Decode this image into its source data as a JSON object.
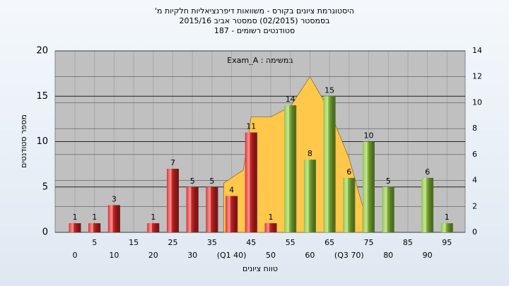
{
  "chart_data": {
    "type": "bar",
    "title": [
      "היסטוגרמת ציונים בקורס - משוואות דיפרנציאליות חלקיות מ'",
      "בסמסטר  (02/2015)  סמסטר אביב 2015/16",
      "סטודנטים רשומים - 187"
    ],
    "annotation": "במשימה : Exam_A",
    "y_label": "מספר סטודנטים",
    "x_label": "טווח ציונים",
    "categories": [
      "0",
      "5",
      "10",
      "15",
      "20",
      "25",
      "30",
      "35",
      "(Q1 40)",
      "45",
      "50",
      "55",
      "60",
      "65",
      "(Q3 70)",
      "75",
      "80",
      "85",
      "90",
      "95"
    ],
    "values": [
      1,
      1,
      3,
      null,
      1,
      7,
      5,
      5,
      4,
      11,
      1,
      14,
      8,
      15,
      6,
      10,
      5,
      null,
      6,
      1
    ],
    "colors": [
      "#e02828",
      "#e02828",
      "#e02828",
      "#e02828",
      "#e02828",
      "#e02828",
      "#e02828",
      "#e02828",
      "#e02828",
      "#e02828",
      "#e02828",
      "#8cc43c",
      "#8cc43c",
      "#8cc43c",
      "#8cc43c",
      "#8cc43c",
      "#8cc43c",
      "#8cc43c",
      "#8cc43c",
      "#8cc43c"
    ],
    "ylim": [
      0,
      20
    ],
    "yticks": [
      0,
      5,
      10,
      15,
      20
    ],
    "y2lim": [
      0,
      14
    ],
    "y2ticks": [
      0,
      2,
      4,
      6,
      8,
      10,
      12,
      14
    ],
    "distribution": {
      "axis": "y2",
      "color": "#ffc84a",
      "x": [
        38,
        43,
        45,
        50,
        55,
        60,
        65,
        70,
        73.5
      ],
      "values": [
        3.8,
        4.8,
        8.9,
        8.9,
        9.7,
        12,
        9.4,
        5.7,
        2
      ]
    },
    "grid": true
  }
}
